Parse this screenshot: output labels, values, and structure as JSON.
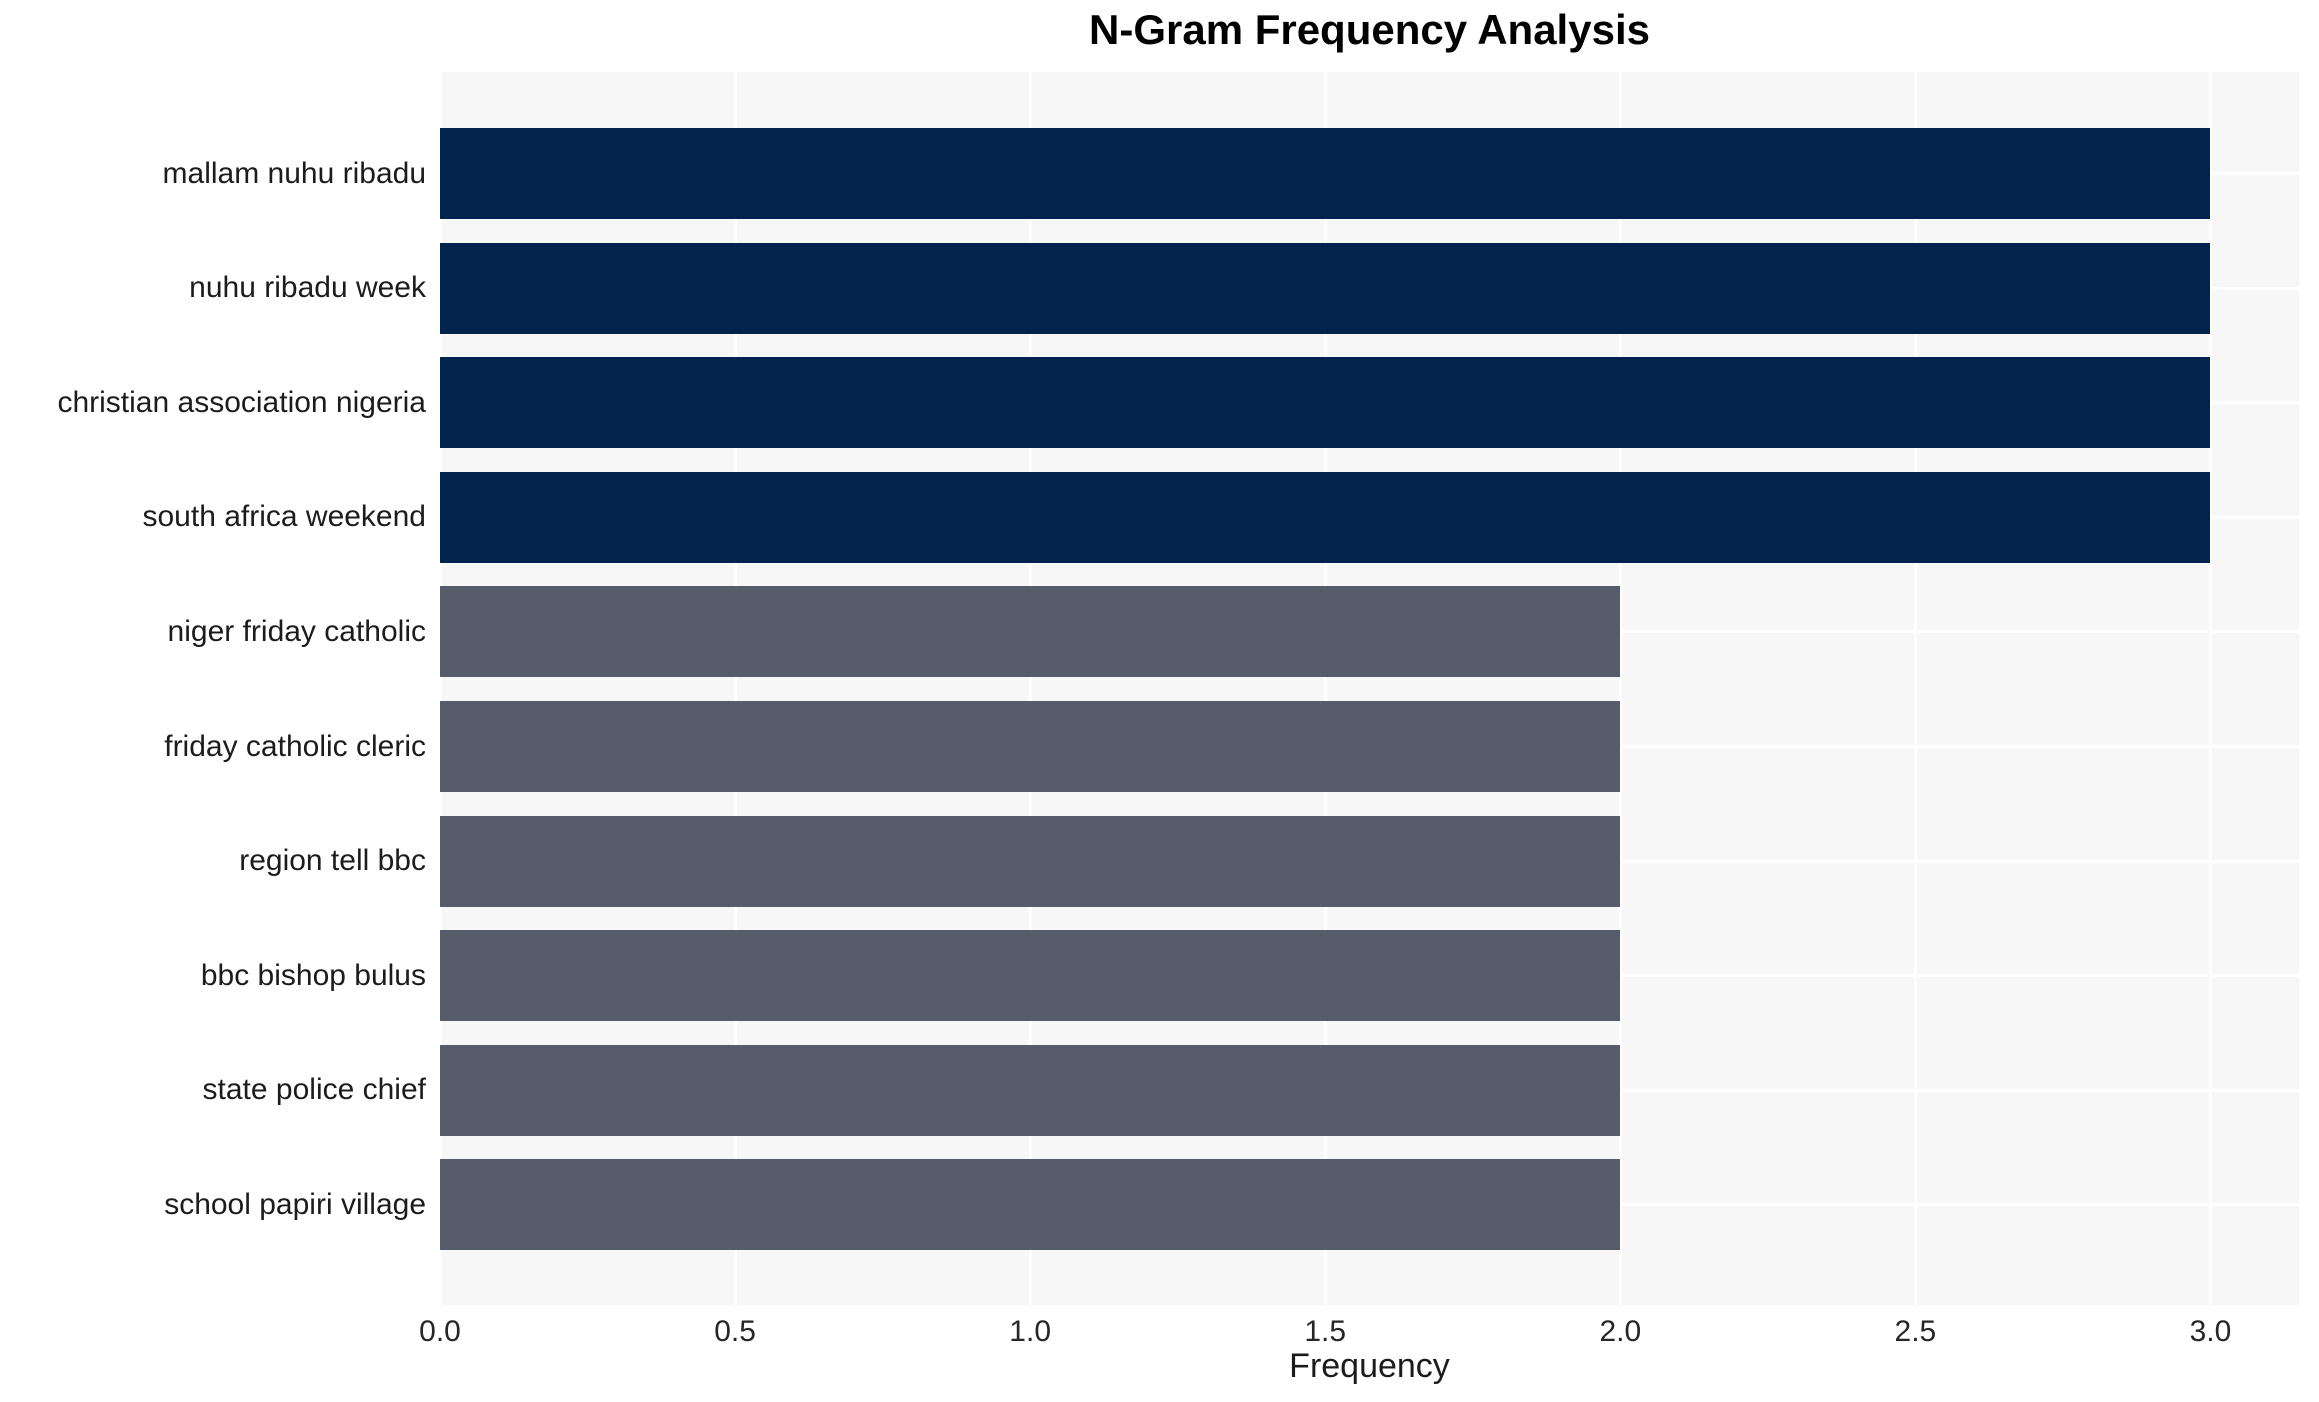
{
  "chart_data": {
    "type": "bar",
    "orientation": "horizontal",
    "title": "N-Gram Frequency Analysis",
    "xlabel": "Frequency",
    "ylabel": "",
    "categories": [
      "mallam nuhu ribadu",
      "nuhu ribadu week",
      "christian association nigeria",
      "south africa weekend",
      "niger friday catholic",
      "friday catholic cleric",
      "region tell bbc",
      "bbc bishop bulus",
      "state police chief",
      "school papiri village"
    ],
    "values": [
      3.0,
      3.0,
      3.0,
      3.0,
      2.0,
      2.0,
      2.0,
      2.0,
      2.0,
      2.0
    ],
    "colors": [
      "#02234d",
      "#02234d",
      "#02234d",
      "#02234d",
      "#565c6a",
      "#565c6a",
      "#565c6a",
      "#565c6a",
      "#565c6a",
      "#565c6a"
    ],
    "bar_color_high": "#02234d",
    "bar_color_low": "#565c6a",
    "xlim": [
      0,
      3.15
    ],
    "xticks": [
      0.0,
      0.5,
      1.0,
      1.5,
      2.0,
      2.5,
      3.0
    ],
    "xtick_labels": [
      "0.0",
      "0.5",
      "1.0",
      "1.5",
      "2.0",
      "2.5",
      "3.0"
    ],
    "grid": true,
    "grid_color": "#ffffff",
    "plot_background": "#f7f7f8",
    "legend": null
  }
}
